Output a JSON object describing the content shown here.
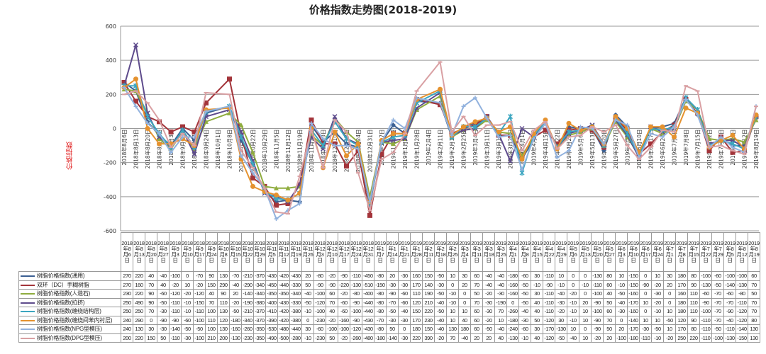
{
  "chart_data": {
    "type": "line",
    "title": "价格指数走势图(2018-2019)",
    "ylabel": "价格指数",
    "xlabel": "",
    "ylim": [
      -600,
      600
    ],
    "yticks": [
      600,
      400,
      200,
      0,
      -200,
      -400,
      -600
    ],
    "grid": true,
    "legend": "bottom-table",
    "axis_dates": [
      "2018年8月6日",
      "2018年8月13日",
      "2018年8月20日",
      "2018年8月27日",
      "2018年9月3日",
      "2018年9月10日",
      "2018年9月17日",
      "2018年9月24日",
      "2018年10月1日",
      "2018年10月8日",
      "2018年10月15日",
      "2018年10月22日",
      "2018年10月29日",
      "2018年11月5日",
      "2018年11月12日",
      "2018年11月19日",
      "2018年11月26日",
      "2018年12月3日",
      "2018年12月10日",
      "2018年12月17日",
      "2018年12月24日",
      "2018年12月31日",
      "2019年1月7日",
      "2019年1月14日",
      "2019年1月21日",
      "2019年1月28日",
      "2019年2月4日",
      "2019年2月11日",
      "2019年2月18日",
      "2019年2月25日",
      "2019年3月4日",
      "2019年3月11日",
      "2019年3月18日",
      "2019年3月25日",
      "2019年4月1日",
      "2019年4月8日",
      "2019年4月15日",
      "2019年4月22日",
      "2019年4月29日",
      "2019年5月6日",
      "2019年5月13日",
      "2019年5月20日",
      "2019年5月27日",
      "2019年6月3日",
      "2019年6月10日",
      "2019年6月17日",
      "2019年6月24日",
      "2019年7月1日",
      "2019年7月8日",
      "2019年7月15日",
      "2019年7月22日",
      "2019年7月29日",
      "2019年8月5日",
      "2019年8月12日",
      "2019年8月19日"
    ],
    "categories": [
      "2018年8月6日",
      "2018年8月13日",
      "2018年8月20日",
      "2018年8月27日",
      "2018年9月3日",
      "2018年9月10日",
      "2018年9月17日",
      "2018年9月24日",
      "2018年10月8日",
      "2018年10月15日",
      "2018年10月22日",
      "2018年10月29日",
      "2018年11月5日",
      "2018年11月12日",
      "2018年11月19日",
      "2018年11月26日",
      "2018年12月3日",
      "2018年12月10日",
      "2018年12月17日",
      "2018年12月24日",
      "2018年12月31日",
      "2019年1月7日",
      "2019年1月14日",
      "2019年1月21日",
      "2019年1月28日",
      "2019年2月11日",
      "2019年2月18日",
      "2019年2月25日",
      "2019年3月4日",
      "2019年3月11日",
      "2019年3月18日",
      "2019年3月25日",
      "2019年4月1日",
      "2019年4月8日",
      "2019年4月15日",
      "2019年4月22日",
      "2019年4月29日",
      "2019年5月6日",
      "2019年5月13日",
      "2019年5月20日",
      "2019年5月27日",
      "2019年6月3日",
      "2019年6月10日",
      "2019年6月17日",
      "2019年6月24日",
      "2019年7月1日",
      "2019年7月8日",
      "2019年7月15日",
      "2019年7月22日",
      "2019年7月29日",
      "2019年8月5日",
      "2019年8月12日",
      "2019年8月19日"
    ],
    "series": [
      {
        "name": "树脂价格指数(通用)",
        "color": "#3b5f92",
        "marker": "diamond",
        "values": [
          270,
          220,
          40,
          -40,
          -100,
          0,
          -70,
          90,
          130,
          -70,
          -210,
          -370,
          -430,
          -420,
          -430,
          20,
          -80,
          -20,
          -90,
          -110,
          -450,
          -80,
          20,
          -30,
          160,
          150,
          -50,
          10,
          30,
          60,
          -40,
          -40,
          -180,
          -60,
          30,
          -110,
          10,
          0,
          0,
          -130,
          80,
          10,
          -150,
          0,
          10,
          30,
          180,
          80,
          -100,
          -60,
          -100,
          -100,
          60
        ]
      },
      {
        "name": "双环（DC）手糊树脂",
        "color": "#a3343a",
        "marker": "square",
        "values": [
          270,
          160,
          70,
          40,
          -20,
          10,
          -20,
          150,
          290,
          -40,
          -290,
          -340,
          -450,
          -440,
          -330,
          50,
          -90,
          -90,
          -220,
          -130,
          -510,
          -150,
          -30,
          -30,
          170,
          140,
          -30,
          0,
          20,
          70,
          -40,
          -40,
          -160,
          -50,
          -10,
          -90,
          -10,
          0,
          -10,
          -110,
          60,
          -10,
          -150,
          -90,
          -20,
          20,
          170,
          90,
          -130,
          -50,
          -140,
          -130,
          70
        ]
      },
      {
        "name": "树脂价格指数(人造石)",
        "color": "#8fac3e",
        "marker": "triangle",
        "values": [
          230,
          220,
          90,
          -60,
          -120,
          -20,
          -120,
          40,
          90,
          20,
          -140,
          -340,
          -350,
          -350,
          -340,
          -40,
          -100,
          60,
          -20,
          -80,
          -400,
          -80,
          -90,
          -60,
          110,
          190,
          -50,
          -10,
          0,
          50,
          -20,
          -30,
          -160,
          -50,
          30,
          -110,
          -40,
          -20,
          0,
          -100,
          40,
          -50,
          -160,
          0,
          -30,
          0,
          160,
          110,
          -60,
          -70,
          -60,
          -80,
          50
        ]
      },
      {
        "name": "树脂价格指数(拉挤)",
        "color": "#5e4b8c",
        "marker": "x",
        "values": [
          250,
          490,
          90,
          -50,
          -110,
          -10,
          -150,
          70,
          110,
          -20,
          -190,
          -380,
          -400,
          -430,
          -330,
          -50,
          -120,
          70,
          -60,
          -90,
          -440,
          -80,
          -70,
          -60,
          120,
          210,
          -40,
          -10,
          0,
          70,
          -30,
          -190,
          0,
          -50,
          40,
          -110,
          -30,
          -10,
          20,
          -90,
          50,
          -40,
          -170,
          10,
          -20,
          0,
          180,
          110,
          -90,
          -70,
          -70,
          -110,
          70
        ]
      },
      {
        "name": "树脂价格指数(缠绕结构层)",
        "color": "#3ba6c0",
        "marker": "star",
        "values": [
          250,
          250,
          70,
          -30,
          -110,
          -10,
          -110,
          100,
          130,
          -50,
          -210,
          -370,
          -410,
          -420,
          -380,
          -10,
          -100,
          40,
          -60,
          -100,
          -440,
          -80,
          -50,
          -40,
          150,
          220,
          -50,
          10,
          10,
          60,
          -30,
          70,
          -260,
          -40,
          40,
          -110,
          -20,
          -10,
          10,
          -100,
          60,
          -30,
          -160,
          0,
          -10,
          10,
          180,
          110,
          -100,
          -70,
          -90,
          -120,
          70
        ]
      },
      {
        "name": "树脂价格指数(缠绕间苯内衬层)",
        "color": "#e5922f",
        "marker": "circle",
        "values": [
          240,
          290,
          0,
          -90,
          -90,
          -60,
          -100,
          110,
          120,
          -180,
          -340,
          -370,
          -390,
          -420,
          -380,
          0,
          -230,
          -20,
          -160,
          -90,
          -430,
          -70,
          -30,
          -30,
          170,
          230,
          -40,
          10,
          40,
          60,
          -20,
          10,
          -180,
          -30,
          50,
          -120,
          30,
          -10,
          10,
          -90,
          70,
          0,
          -140,
          10,
          10,
          -50,
          120,
          90,
          -110,
          -70,
          -40,
          -120,
          80
        ]
      },
      {
        "name": "树脂价格指数(NPG型模压)",
        "color": "#92b2de",
        "marker": "plus",
        "values": [
          240,
          130,
          30,
          -30,
          -140,
          -50,
          -50,
          100,
          130,
          -160,
          -260,
          -350,
          -530,
          -480,
          -440,
          30,
          -60,
          -100,
          -100,
          -120,
          -430,
          -80,
          50,
          0,
          180,
          150,
          -40,
          130,
          180,
          60,
          -50,
          -40,
          -240,
          -60,
          30,
          -170,
          -130,
          10,
          0,
          -90,
          50,
          20,
          -170,
          -30,
          -50,
          10,
          170,
          80,
          -110,
          -50,
          -110,
          -140,
          130
        ]
      },
      {
        "name": "树脂价格指数(DPG型模压)",
        "color": "#d9a0a3",
        "marker": "dash",
        "values": [
          200,
          220,
          150,
          50,
          -110,
          -30,
          -100,
          210,
          200,
          -130,
          -230,
          -350,
          -490,
          -500,
          -280,
          -10,
          -230,
          50,
          -20,
          -260,
          -480,
          -180,
          -140,
          -30,
          220,
          390,
          -20,
          70,
          -40,
          20,
          20,
          40,
          -130,
          -10,
          40,
          -120,
          -50,
          -40,
          10,
          -20,
          20,
          -100,
          -180,
          -110,
          -10,
          -20,
          250,
          220,
          -110,
          -100,
          -130,
          -150,
          130
        ]
      }
    ],
    "table_headers": [
      "2018年8月6日",
      "2018年8月13日",
      "2018年8月20日",
      "2018年8月27日",
      "2018年9月3日",
      "2018年9月10日",
      "2018年9月17日",
      "2018年9月24日",
      "2018年10月8日",
      "2018年10月15日",
      "2018年10月22日",
      "2018年10月29日",
      "2018年11月5日",
      "2018年11月12日",
      "2018年11月19日",
      "2018年11月26日",
      "2018年12月3日",
      "2018年12月10日",
      "2018年12月17日",
      "2018年12月24日",
      "2018年12月31日",
      "2019年1月7日",
      "2019年1月14日",
      "2019年1月21日",
      "2019年1月28日",
      "2019年2月11日",
      "2019年2月18日",
      "2019年2月25日",
      "2019年3月4日",
      "2019年3月11日",
      "2019年3月18日",
      "2019年3月25日",
      "2019年4月1日",
      "2019年4月8日",
      "2019年4月15日",
      "2019年4月22日",
      "2019年4月29日",
      "2019年5月6日",
      "2019年5月13日",
      "2019年5月20日",
      "2019年5月27日",
      "2019年6月3日",
      "2019年6月10日",
      "2019年6月17日",
      "2019年6月24日",
      "2019年7月1日",
      "2019年7月8日",
      "2019年7月15日",
      "2019年7月22日",
      "2019年7月29日",
      "2019年8月5日",
      "2019年8月12日",
      "2019年8月19日"
    ]
  }
}
